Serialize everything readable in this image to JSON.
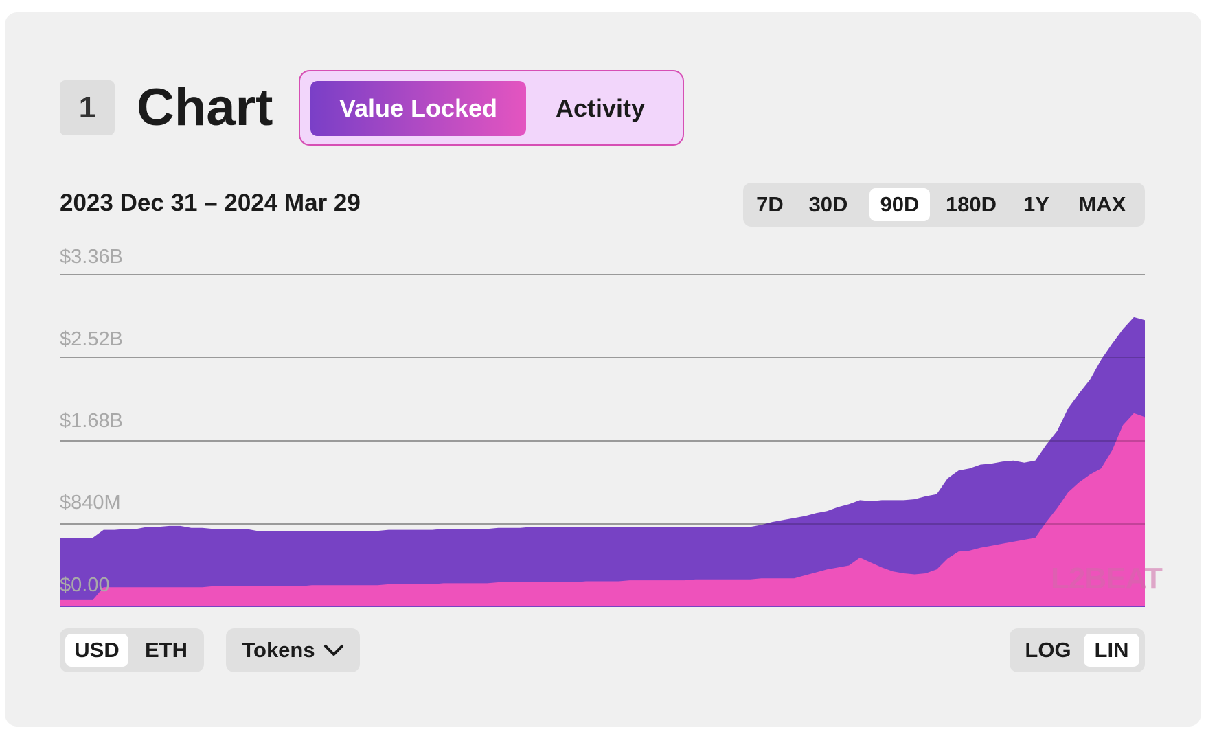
{
  "header": {
    "section_number": "1",
    "title": "Chart",
    "tabs": [
      {
        "label": "Value Locked",
        "active": true
      },
      {
        "label": "Activity",
        "active": false
      }
    ]
  },
  "date_range": "2023 Dec 31 – 2024 Mar 29",
  "range_options": [
    {
      "label": "7D",
      "active": false
    },
    {
      "label": "30D",
      "active": false
    },
    {
      "label": "90D",
      "active": true
    },
    {
      "label": "180D",
      "active": false
    },
    {
      "label": "1Y",
      "active": false
    },
    {
      "label": "MAX",
      "active": false
    }
  ],
  "currency_options": [
    {
      "label": "USD",
      "active": true
    },
    {
      "label": "ETH",
      "active": false
    }
  ],
  "tokens_label": "Tokens",
  "scale_options": [
    {
      "label": "LOG",
      "active": false
    },
    {
      "label": "LIN",
      "active": true
    }
  ],
  "watermark": "L2BEAT",
  "colors": {
    "accent_purple": "#7742c4",
    "accent_pink": "#ee52bb",
    "card_bg": "#f0f0f0"
  },
  "icons": {
    "tokens_dropdown": "chevron-down-icon"
  },
  "chart_data": {
    "type": "area",
    "stacked": true,
    "x_start": "2023-12-31",
    "x_end": "2024-03-29",
    "ytick_labels": [
      "$0.00",
      "$840M",
      "$1.68B",
      "$2.52B",
      "$3.36B"
    ],
    "ytick_values": [
      0,
      0.84,
      1.68,
      2.52,
      3.36
    ],
    "y_unit": "USD billions",
    "ylim": [
      0,
      3.36
    ],
    "scale": "linear",
    "grid": true,
    "series": [
      {
        "color": "#ee52bb",
        "values": [
          0.07,
          0.07,
          0.07,
          0.07,
          0.2,
          0.2,
          0.2,
          0.2,
          0.2,
          0.2,
          0.2,
          0.2,
          0.2,
          0.2,
          0.21,
          0.21,
          0.21,
          0.21,
          0.21,
          0.21,
          0.21,
          0.21,
          0.21,
          0.22,
          0.22,
          0.22,
          0.22,
          0.22,
          0.22,
          0.22,
          0.23,
          0.23,
          0.23,
          0.23,
          0.23,
          0.24,
          0.24,
          0.24,
          0.24,
          0.24,
          0.25,
          0.25,
          0.25,
          0.25,
          0.25,
          0.25,
          0.25,
          0.25,
          0.26,
          0.26,
          0.26,
          0.26,
          0.27,
          0.27,
          0.27,
          0.27,
          0.27,
          0.27,
          0.28,
          0.28,
          0.28,
          0.28,
          0.28,
          0.28,
          0.29,
          0.29,
          0.29,
          0.29,
          0.32,
          0.35,
          0.38,
          0.4,
          0.42,
          0.5,
          0.45,
          0.4,
          0.36,
          0.34,
          0.33,
          0.34,
          0.38,
          0.49,
          0.56,
          0.57,
          0.6,
          0.62,
          0.64,
          0.66,
          0.68,
          0.7,
          0.86,
          1.0,
          1.16,
          1.26,
          1.34,
          1.4,
          1.58,
          1.84,
          1.96,
          1.92
        ]
      },
      {
        "color": "#7742c4",
        "values": [
          0.63,
          0.63,
          0.63,
          0.63,
          0.58,
          0.58,
          0.59,
          0.59,
          0.61,
          0.61,
          0.62,
          0.62,
          0.6,
          0.6,
          0.58,
          0.58,
          0.58,
          0.58,
          0.56,
          0.56,
          0.56,
          0.56,
          0.56,
          0.55,
          0.55,
          0.55,
          0.55,
          0.55,
          0.55,
          0.55,
          0.55,
          0.55,
          0.55,
          0.55,
          0.55,
          0.55,
          0.55,
          0.55,
          0.55,
          0.55,
          0.55,
          0.55,
          0.55,
          0.56,
          0.56,
          0.56,
          0.56,
          0.56,
          0.55,
          0.55,
          0.55,
          0.55,
          0.54,
          0.54,
          0.54,
          0.54,
          0.54,
          0.54,
          0.53,
          0.53,
          0.53,
          0.53,
          0.53,
          0.53,
          0.54,
          0.57,
          0.59,
          0.61,
          0.6,
          0.6,
          0.59,
          0.61,
          0.62,
          0.58,
          0.62,
          0.68,
          0.72,
          0.74,
          0.76,
          0.78,
          0.76,
          0.81,
          0.82,
          0.83,
          0.84,
          0.83,
          0.83,
          0.82,
          0.78,
          0.78,
          0.78,
          0.78,
          0.85,
          0.9,
          0.96,
          1.1,
          1.08,
          0.97,
          0.97,
          0.98
        ]
      }
    ]
  }
}
